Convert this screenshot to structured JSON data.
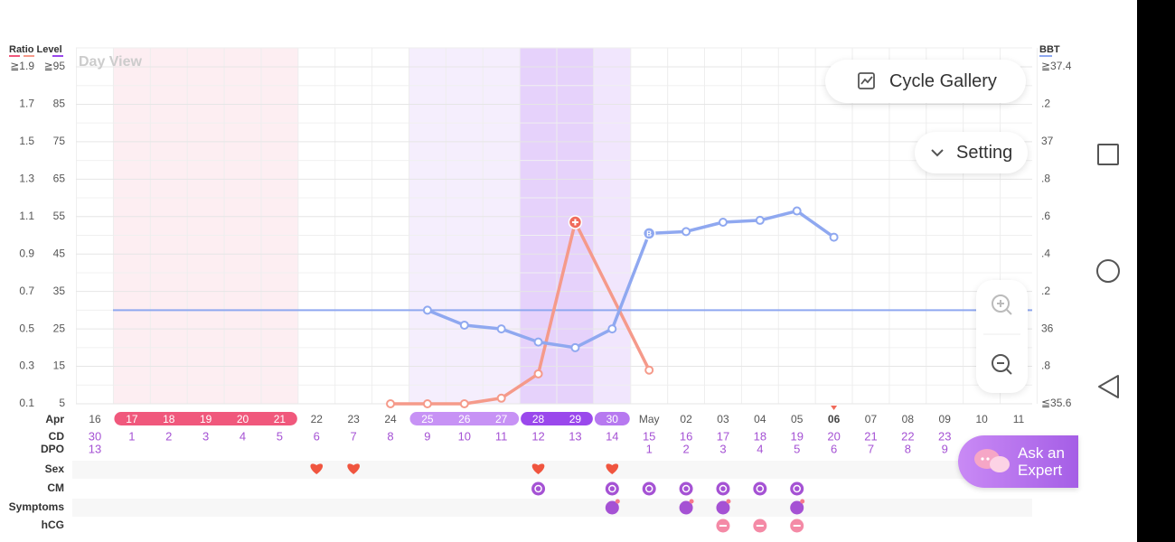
{
  "header": {
    "ratio_level_label": "Ratio Level",
    "bbt_label": "BBT",
    "view_label": "Day View"
  },
  "buttons": {
    "cycle_gallery": "Cycle Gallery",
    "setting": "Setting",
    "ask_expert": "Ask an Expert"
  },
  "chart_data": {
    "type": "line",
    "month_label": "Apr",
    "categories": [
      "16",
      "17",
      "18",
      "19",
      "20",
      "21",
      "22",
      "23",
      "24",
      "25",
      "26",
      "27",
      "28",
      "29",
      "30",
      "May",
      "02",
      "03",
      "04",
      "05",
      "06",
      "07",
      "08",
      "09",
      "10",
      "11"
    ],
    "row_labels": {
      "cd": "CD",
      "dpo": "DPO",
      "sex": "Sex",
      "cm": "CM",
      "symptoms": "Symptoms",
      "hcg": "hCG"
    },
    "cd": [
      30,
      1,
      2,
      3,
      4,
      5,
      6,
      7,
      8,
      9,
      10,
      11,
      12,
      13,
      14,
      15,
      16,
      17,
      18,
      19,
      20,
      21,
      22,
      23,
      null,
      null
    ],
    "dpo": [
      13,
      null,
      null,
      null,
      null,
      null,
      null,
      null,
      null,
      null,
      null,
      null,
      null,
      null,
      null,
      1,
      2,
      3,
      4,
      5,
      6,
      7,
      8,
      9,
      null,
      null
    ],
    "ylim": [
      0.1,
      1.9
    ],
    "yticks": [
      0.1,
      0.3,
      0.5,
      0.7,
      0.9,
      1.1,
      1.3,
      1.5,
      1.7,
      {
        "value": 1.9,
        "label": "≧1.9"
      }
    ],
    "level_lim": [
      5,
      95
    ],
    "level_ticks": [
      5,
      15,
      25,
      35,
      45,
      55,
      65,
      75,
      85,
      {
        "value": 95,
        "label": "≧95"
      }
    ],
    "y2lim": [
      35.6,
      37.4
    ],
    "y2ticks": [
      {
        "value": 35.6,
        "label": "≦35.6"
      },
      {
        "value": 35.8,
        "label": ".8"
      },
      36,
      {
        "value": 36.2,
        "label": ".2"
      },
      {
        "value": 36.4,
        "label": ".4"
      },
      {
        "value": 36.6,
        "label": ".6"
      },
      {
        "value": 36.8,
        "label": ".8"
      },
      37,
      {
        "value": 37.2,
        "label": ".2"
      },
      {
        "value": 37.4,
        "label": "≧37.4"
      }
    ],
    "coverline": 36.1,
    "ovulation_marker": "B",
    "series": [
      {
        "name": "Ratio",
        "color": "#f59a8a",
        "axis": "y",
        "values": [
          null,
          null,
          null,
          null,
          null,
          null,
          null,
          null,
          0.1,
          0.1,
          0.1,
          0.13,
          0.26,
          1.07,
          null,
          0.28,
          null,
          null,
          null,
          null,
          null,
          null,
          null,
          null,
          null,
          null
        ]
      },
      {
        "name": "BBT",
        "color": "#8fa8f0",
        "axis": "y2",
        "values": [
          null,
          null,
          null,
          null,
          null,
          null,
          null,
          null,
          null,
          36.1,
          36.02,
          36.0,
          35.93,
          35.9,
          36.0,
          36.51,
          36.52,
          36.57,
          36.58,
          36.63,
          36.49,
          null,
          null,
          null,
          null,
          null
        ]
      }
    ]
  }
}
